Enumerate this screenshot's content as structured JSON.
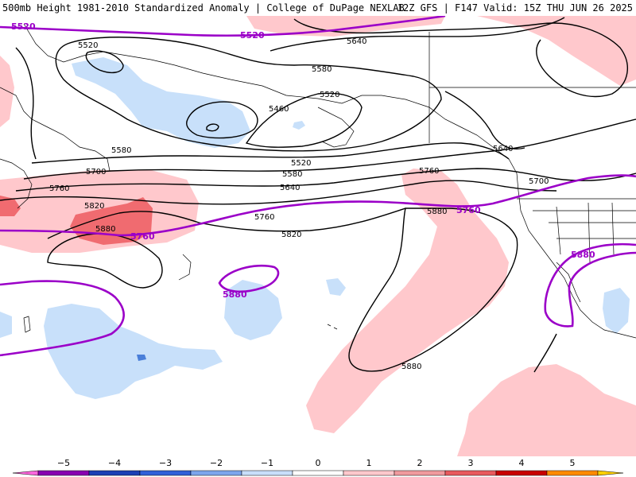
{
  "header": {
    "title_left": "500mb Height 1981-2010 Standardized Anomaly | College of DuPage NEXLAB",
    "title_right": "12Z GFS | F147 Valid: 15Z THU JUN 26 2025"
  },
  "colors": {
    "positive_anomaly": "#ffc8cc",
    "strong_positive_anomaly": "#f06b70",
    "negative_anomaly": "#c8e0fa",
    "strong_negative_anomaly": "#4a7fd9",
    "height_contour": "#000000",
    "highlight_contour": "#9b00c8",
    "coastline": "#000000"
  },
  "contour_labels": {
    "black": [
      "5520",
      "5640",
      "5580",
      "5520",
      "5460",
      "5580",
      "5520",
      "5640",
      "5700",
      "5580",
      "5760",
      "5640",
      "5700",
      "5820",
      "5760",
      "5760",
      "5880",
      "5820",
      "5880",
      "5880"
    ],
    "purple": [
      "5520",
      "5520",
      "5760",
      "5760",
      "5880",
      "5880"
    ]
  },
  "legend": {
    "ticks": [
      "−5",
      "−4",
      "−3",
      "−2",
      "−1",
      "0",
      "1",
      "2",
      "3",
      "4",
      "5"
    ],
    "colors": [
      "#ff66dd",
      "#8800b0",
      "#1c3fb5",
      "#3060d8",
      "#7ca5ec",
      "#c8defa",
      "#ffffff",
      "#ffc8cc",
      "#f09a9e",
      "#e85a5e",
      "#c80000",
      "#ff8a00",
      "#ffd000"
    ]
  }
}
